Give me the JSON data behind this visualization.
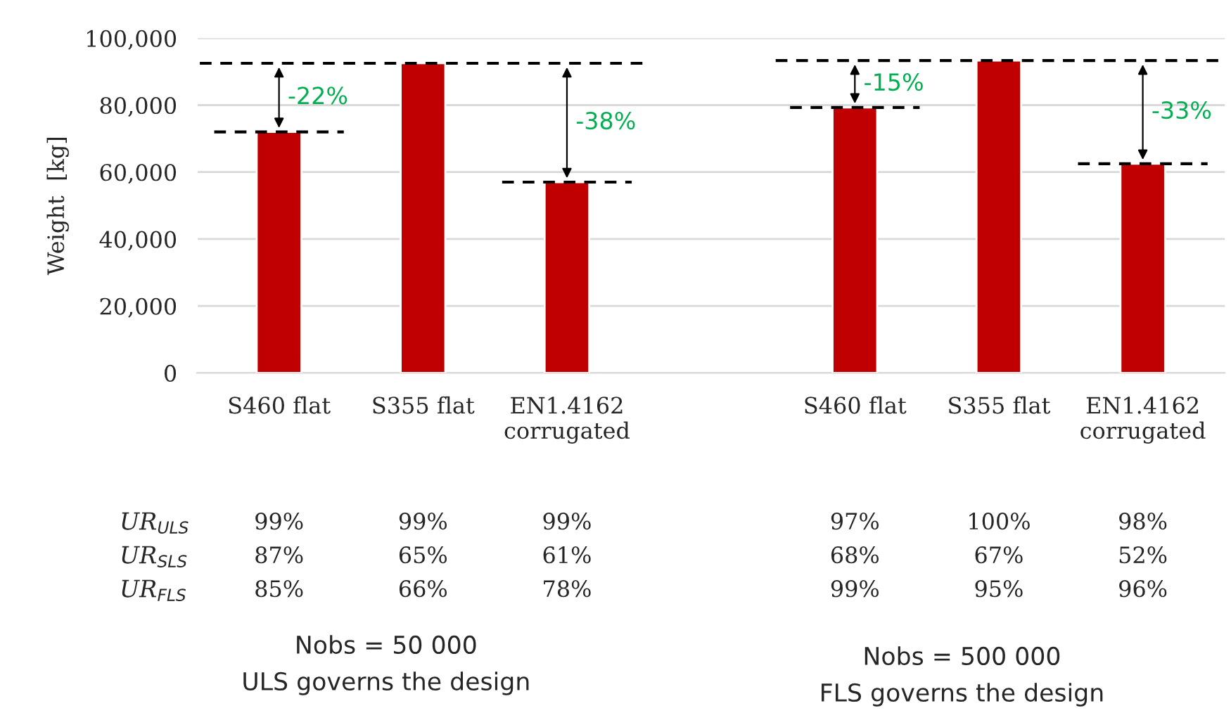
{
  "chart_data": {
    "type": "bar",
    "ylabel": "Weight  [kg]",
    "categories": [
      "S460 flat",
      "S355 flat",
      "EN1.4162\ncorrugated",
      null,
      "S460 flat",
      "S355 flat",
      "EN1.4162\ncorrugated"
    ],
    "values": [
      72000,
      92500,
      57000,
      null,
      79300,
      93300,
      62500
    ],
    "color": "#c00000",
    "ylim": [
      0,
      100000
    ],
    "yticks": [
      0,
      {
        "value": 20000,
        "label": "20,000"
      },
      {
        "value": 40000,
        "label": "40,000"
      },
      {
        "value": 60000,
        "label": "60,000"
      },
      {
        "value": 80000,
        "label": "80,000"
      },
      {
        "value": 100000,
        "label": "100,000"
      }
    ],
    "grid": "y",
    "ref_lines": [
      {
        "axis": "y",
        "value": 92500,
        "color": "#000000",
        "line_style": "dashed"
      },
      {
        "axis": "y",
        "value": 72000,
        "color": "#000000",
        "line_style": "dashed"
      },
      {
        "axis": "y",
        "value": 57000,
        "color": "#000000",
        "line_style": "dashed"
      },
      {
        "axis": "y",
        "value": 93300,
        "color": "#000000",
        "line_style": "dashed"
      },
      {
        "axis": "y",
        "value": 79300,
        "color": "#000000",
        "line_style": "dashed"
      },
      {
        "axis": "y",
        "value": 62500,
        "color": "#000000",
        "line_style": "dashed"
      }
    ],
    "annotations": [
      "-22%",
      "-38%",
      "-15%",
      "-33%",
      "UR$_{ULS}$",
      "99%",
      "99%",
      "99%",
      "97%",
      "100%",
      "98%",
      "UR$_{SLS}$",
      "87%",
      "65%",
      "61%",
      "68%",
      "67%",
      "52%",
      "UR$_{FLS}$",
      "85%",
      "66%",
      "78%",
      "99%",
      "95%",
      "96%",
      "Nobs = 50 000",
      "ULS governs the design",
      "Nobs = 500 000",
      "FLS governs the design"
    ]
  }
}
